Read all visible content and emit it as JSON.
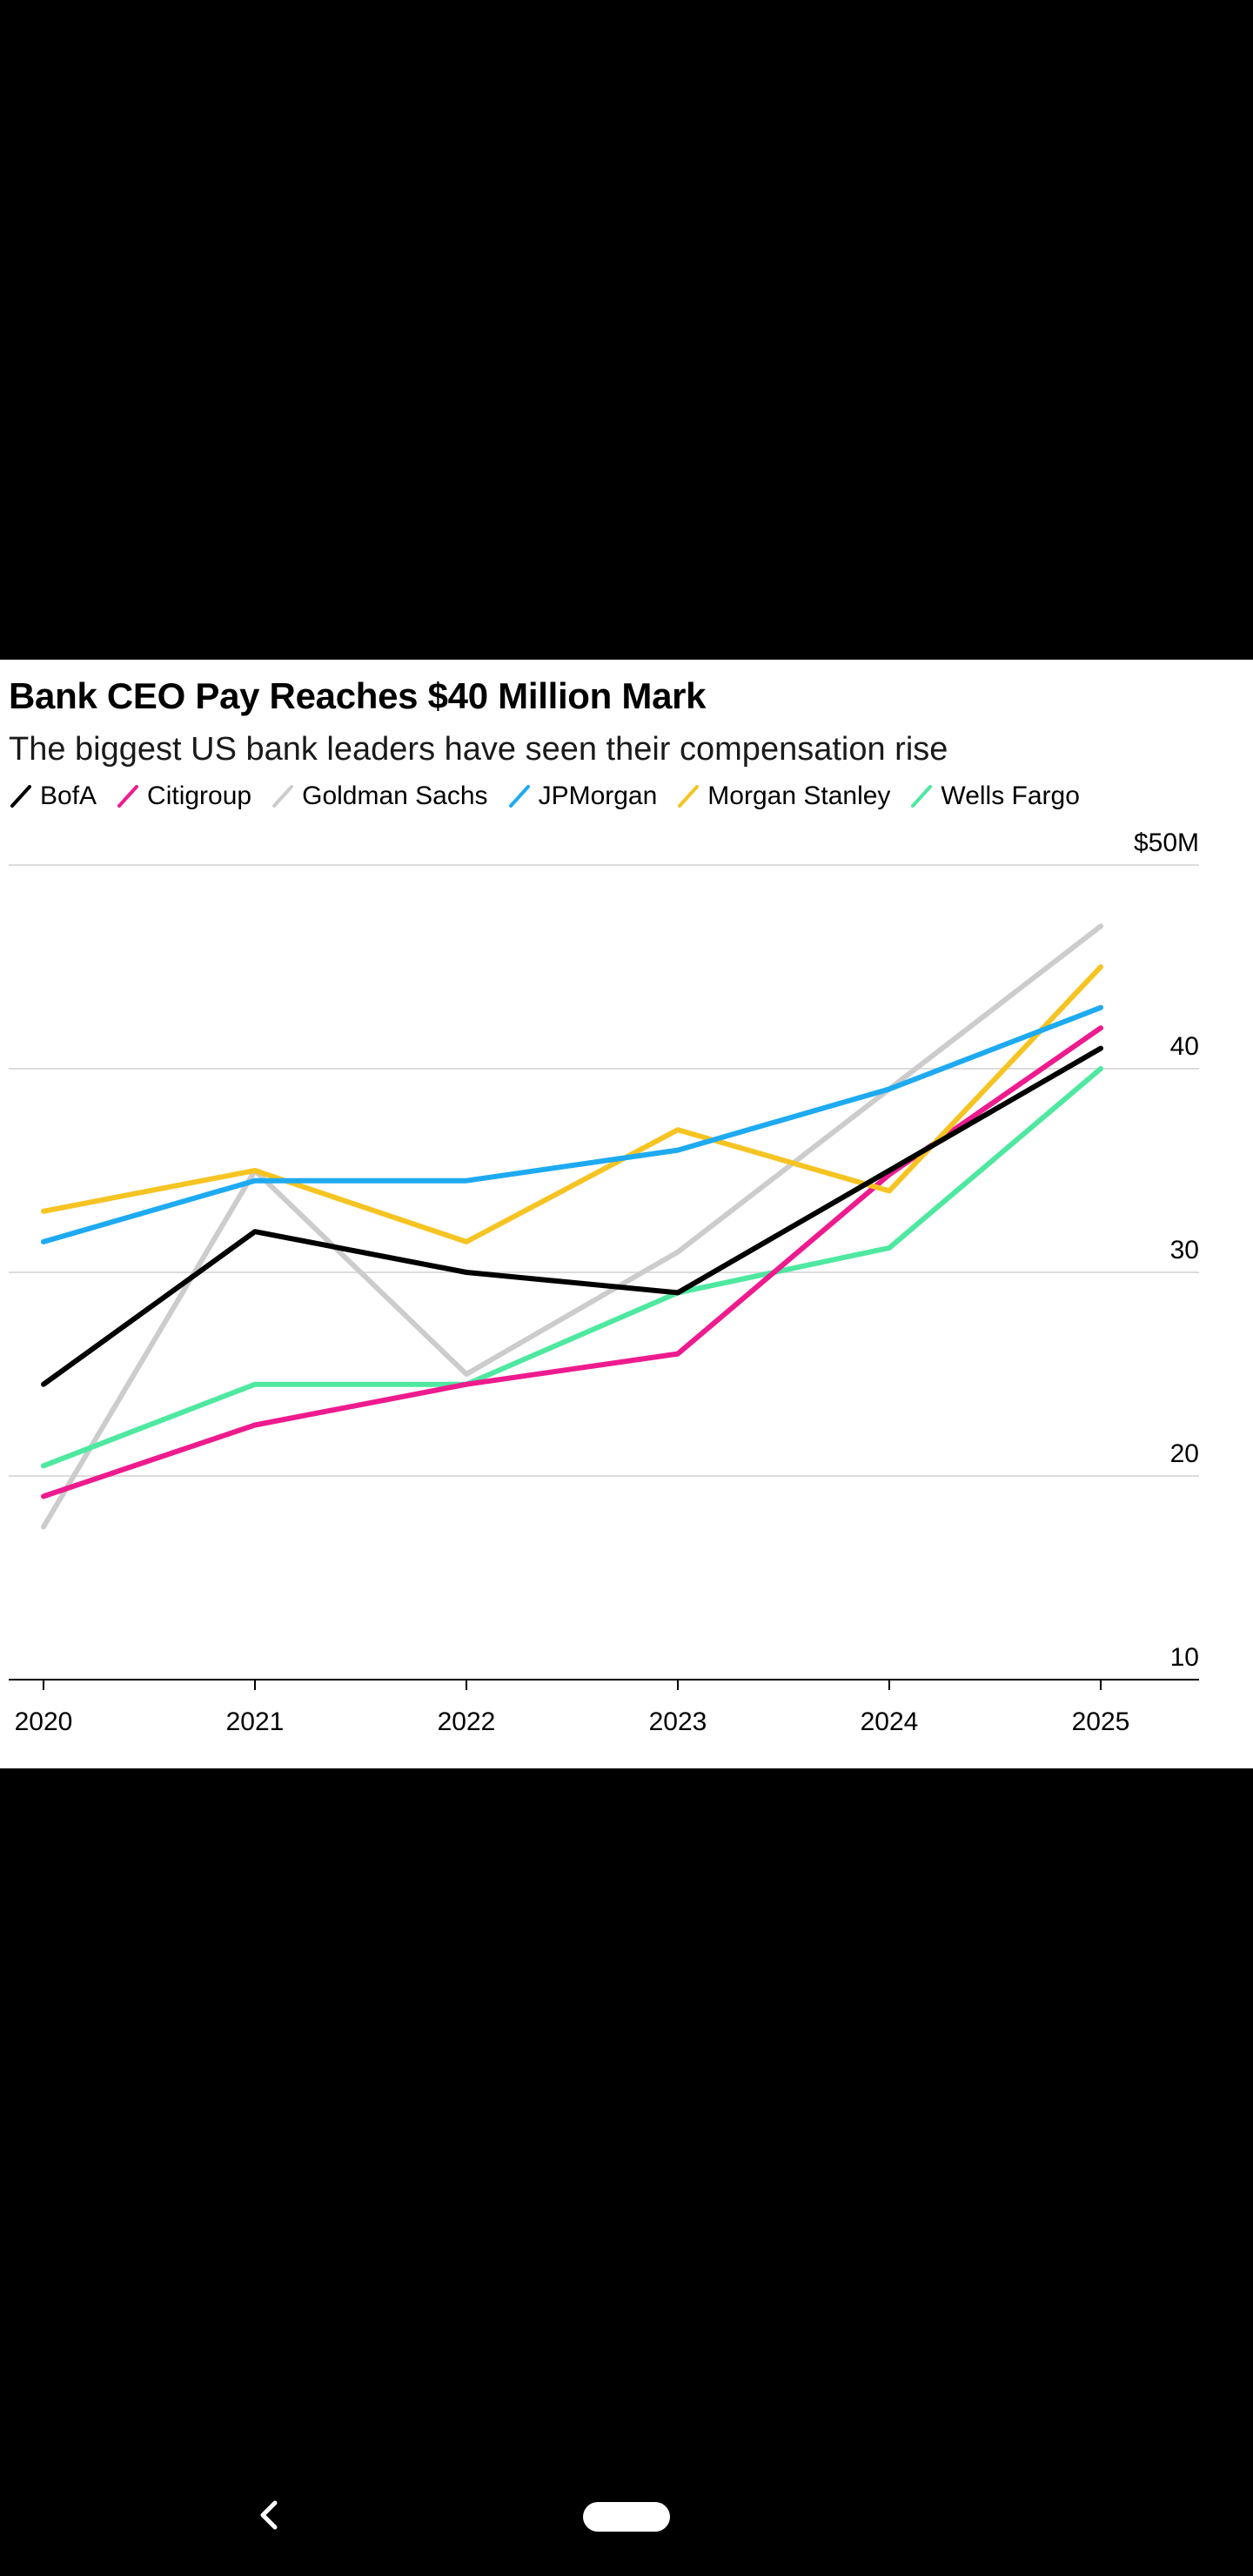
{
  "chart_data": {
    "type": "line",
    "title": "Bank CEO Pay Reaches $40 Million Mark",
    "subtitle": "The biggest US bank leaders have seen their compensation rise",
    "x": [
      "2020",
      "2021",
      "2022",
      "2023",
      "2024",
      "2025"
    ],
    "y_ticks": [
      {
        "value": 50,
        "label": "$50M"
      },
      {
        "value": 40,
        "label": "40"
      },
      {
        "value": 30,
        "label": "30"
      },
      {
        "value": 20,
        "label": "20"
      },
      {
        "value": 10,
        "label": "10"
      }
    ],
    "ylim": [
      10,
      50
    ],
    "grid": true,
    "legend_position": "top-left",
    "series": [
      {
        "name": "Goldman Sachs",
        "color": "#cccccc",
        "values": [
          17.5,
          35,
          25,
          31,
          39,
          47
        ]
      },
      {
        "name": "Wells Fargo",
        "color": "#4ee8a0",
        "values": [
          20.5,
          24.5,
          24.5,
          29,
          31.2,
          40
        ]
      },
      {
        "name": "Citigroup",
        "color": "#ee1b8e",
        "values": [
          19,
          22.5,
          24.5,
          26,
          34.8,
          42
        ]
      },
      {
        "name": "Morgan Stanley",
        "color": "#f6c422",
        "values": [
          33,
          35,
          31.5,
          37,
          34,
          45
        ]
      },
      {
        "name": "JPMorgan",
        "color": "#1eaaf1",
        "values": [
          31.5,
          34.5,
          34.5,
          36,
          39,
          43
        ]
      },
      {
        "name": "BofA",
        "color": "#000000",
        "values": [
          24.5,
          32,
          30,
          29,
          35,
          41
        ]
      }
    ],
    "legend": [
      {
        "name": "BofA",
        "color": "#000000"
      },
      {
        "name": "Citigroup",
        "color": "#ee1b8e"
      },
      {
        "name": "Goldman Sachs",
        "color": "#cccccc"
      },
      {
        "name": "JPMorgan",
        "color": "#1eaaf1"
      },
      {
        "name": "Morgan Stanley",
        "color": "#f6c422"
      },
      {
        "name": "Wells Fargo",
        "color": "#4ee8a0"
      }
    ]
  },
  "nav": {
    "back_icon": "chevron-left-icon",
    "home_icon": "home-pill-icon"
  }
}
